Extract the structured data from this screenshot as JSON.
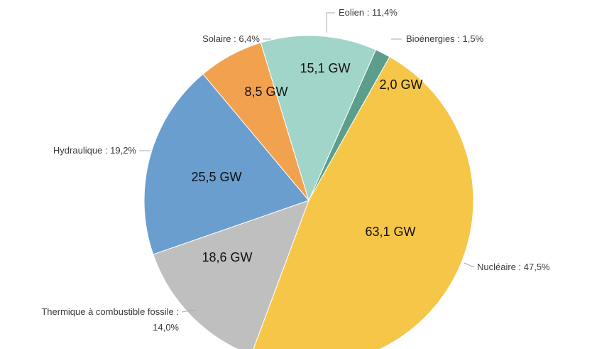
{
  "chart_data": {
    "type": "pie",
    "categories": [
      "Bioénergies : 1,5%",
      "Nucléaire : 47,5%",
      "Thermique à combustible fossile : 14,0%",
      "Hydraulique : 19,2%",
      "Solaire : 6,4%",
      "Eolien : 11,4%"
    ],
    "values": [
      2.0,
      63.1,
      18.6,
      25.5,
      8.5,
      15.1
    ],
    "value_labels": [
      "2,0 GW",
      "63,1 GW",
      "18,6 GW",
      "25,5 GW",
      "8,5 GW",
      "15,1 GW"
    ],
    "colors": [
      "#5c9e8b",
      "#f6c648",
      "#bfbfbf",
      "#6a9ecf",
      "#f2a14f",
      "#a1d5c9"
    ]
  }
}
